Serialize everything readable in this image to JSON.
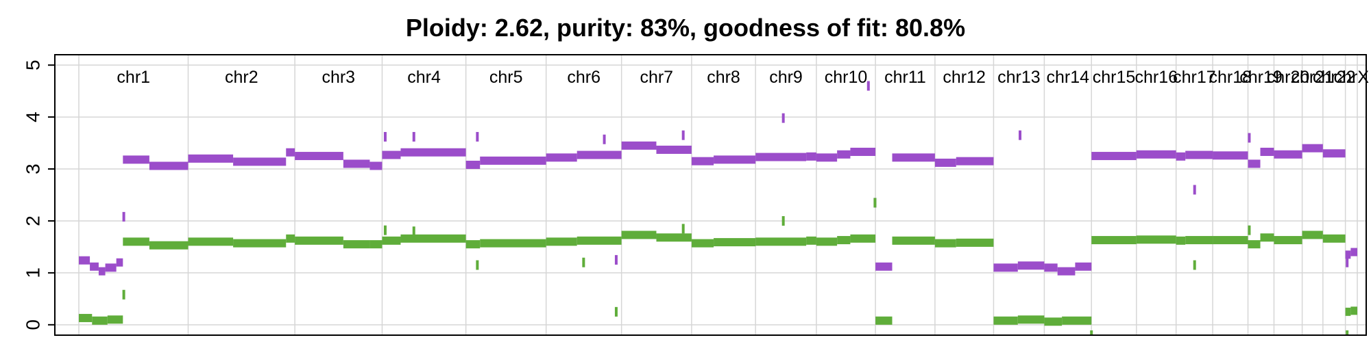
{
  "chart_data": {
    "type": "scatter",
    "title": "Ploidy: 2.62, purity: 83%, goodness of fit: 80.8%",
    "xlabel": "",
    "ylabel": "",
    "ylim": [
      0,
      5
    ],
    "yticks": [
      "0",
      "1",
      "2",
      "3",
      "4",
      "5"
    ],
    "grid": true,
    "colors": {
      "major": "#9B4DCA",
      "minor": "#5FAD3A"
    },
    "chromosomes": [
      {
        "name": "chr1",
        "start": 0,
        "end": 248
      },
      {
        "name": "chr2",
        "start": 248,
        "end": 490
      },
      {
        "name": "chr3",
        "start": 490,
        "end": 688
      },
      {
        "name": "chr4",
        "start": 688,
        "end": 878
      },
      {
        "name": "chr5",
        "start": 878,
        "end": 1060
      },
      {
        "name": "chr6",
        "start": 1060,
        "end": 1231
      },
      {
        "name": "chr7",
        "start": 1231,
        "end": 1390
      },
      {
        "name": "chr8",
        "start": 1390,
        "end": 1535
      },
      {
        "name": "chr9",
        "start": 1535,
        "end": 1673
      },
      {
        "name": "chr10",
        "start": 1673,
        "end": 1807
      },
      {
        "name": "chr11",
        "start": 1807,
        "end": 1942
      },
      {
        "name": "chr12",
        "start": 1942,
        "end": 2075
      },
      {
        "name": "chr13",
        "start": 2075,
        "end": 2190
      },
      {
        "name": "chr14",
        "start": 2190,
        "end": 2297
      },
      {
        "name": "chr15",
        "start": 2297,
        "end": 2399
      },
      {
        "name": "chr16",
        "start": 2399,
        "end": 2489
      },
      {
        "name": "chr17",
        "start": 2489,
        "end": 2572
      },
      {
        "name": "chr18",
        "start": 2572,
        "end": 2652
      },
      {
        "name": "chr19",
        "start": 2652,
        "end": 2711
      },
      {
        "name": "chr20",
        "start": 2711,
        "end": 2775
      },
      {
        "name": "chr21",
        "start": 2775,
        "end": 2822
      },
      {
        "name": "chr22",
        "start": 2822,
        "end": 2873
      },
      {
        "name": "chrX",
        "start": 2873,
        "end": 2900
      }
    ],
    "series": [
      {
        "name": "major",
        "segments": [
          [
            0,
            25,
            1.24
          ],
          [
            25,
            45,
            1.12
          ],
          [
            45,
            60,
            1.03
          ],
          [
            60,
            85,
            1.1
          ],
          [
            85,
            100,
            1.2
          ],
          [
            100,
            160,
            3.18
          ],
          [
            160,
            248,
            3.06
          ],
          [
            248,
            350,
            3.2
          ],
          [
            350,
            470,
            3.14
          ],
          [
            470,
            490,
            3.32
          ],
          [
            490,
            600,
            3.25
          ],
          [
            600,
            660,
            3.1
          ],
          [
            660,
            688,
            3.06
          ],
          [
            688,
            730,
            3.27
          ],
          [
            730,
            878,
            3.32
          ],
          [
            878,
            910,
            3.08
          ],
          [
            910,
            1060,
            3.16
          ],
          [
            1060,
            1130,
            3.22
          ],
          [
            1130,
            1231,
            3.27
          ],
          [
            1231,
            1310,
            3.45
          ],
          [
            1310,
            1390,
            3.37
          ],
          [
            1390,
            1440,
            3.15
          ],
          [
            1440,
            1535,
            3.18
          ],
          [
            1535,
            1650,
            3.23
          ],
          [
            1650,
            1673,
            3.24
          ],
          [
            1673,
            1720,
            3.22
          ],
          [
            1720,
            1750,
            3.28
          ],
          [
            1750,
            1807,
            3.33
          ],
          [
            1807,
            1845,
            1.12
          ],
          [
            1845,
            1942,
            3.22
          ],
          [
            1942,
            1990,
            3.12
          ],
          [
            1990,
            2075,
            3.15
          ],
          [
            2075,
            2130,
            1.1
          ],
          [
            2130,
            2190,
            1.14
          ],
          [
            2190,
            2220,
            1.1
          ],
          [
            2220,
            2260,
            1.03
          ],
          [
            2260,
            2297,
            1.12
          ],
          [
            2297,
            2399,
            3.25
          ],
          [
            2399,
            2489,
            3.28
          ],
          [
            2489,
            2510,
            3.24
          ],
          [
            2510,
            2572,
            3.27
          ],
          [
            2572,
            2652,
            3.26
          ],
          [
            2652,
            2680,
            3.1
          ],
          [
            2680,
            2711,
            3.33
          ],
          [
            2711,
            2775,
            3.28
          ],
          [
            2775,
            2822,
            3.4
          ],
          [
            2822,
            2873,
            3.3
          ],
          [
            2873,
            2885,
            1.35
          ],
          [
            2885,
            2900,
            1.4
          ]
        ],
        "points": [
          [
            102,
            2.08
          ],
          [
            695,
            3.62
          ],
          [
            760,
            3.62
          ],
          [
            904,
            3.62
          ],
          [
            1192,
            3.57
          ],
          [
            1219,
            1.25
          ],
          [
            1371,
            3.65
          ],
          [
            1598,
            3.98
          ],
          [
            1791,
            4.6
          ],
          [
            1806,
            2.35
          ],
          [
            2135,
            3.65
          ],
          [
            2531,
            2.6
          ],
          [
            2655,
            3.6
          ],
          [
            2877,
            1.2
          ]
        ]
      },
      {
        "name": "minor",
        "segments": [
          [
            0,
            30,
            0.13
          ],
          [
            30,
            65,
            0.08
          ],
          [
            65,
            100,
            0.1
          ],
          [
            100,
            160,
            1.6
          ],
          [
            160,
            248,
            1.53
          ],
          [
            248,
            350,
            1.6
          ],
          [
            350,
            470,
            1.57
          ],
          [
            470,
            490,
            1.66
          ],
          [
            490,
            600,
            1.62
          ],
          [
            600,
            660,
            1.55
          ],
          [
            660,
            688,
            1.55
          ],
          [
            688,
            730,
            1.62
          ],
          [
            730,
            878,
            1.66
          ],
          [
            878,
            910,
            1.55
          ],
          [
            910,
            1060,
            1.57
          ],
          [
            1060,
            1130,
            1.6
          ],
          [
            1130,
            1231,
            1.62
          ],
          [
            1231,
            1310,
            1.73
          ],
          [
            1310,
            1390,
            1.68
          ],
          [
            1390,
            1440,
            1.57
          ],
          [
            1440,
            1535,
            1.59
          ],
          [
            1535,
            1650,
            1.6
          ],
          [
            1650,
            1673,
            1.62
          ],
          [
            1673,
            1720,
            1.6
          ],
          [
            1720,
            1750,
            1.63
          ],
          [
            1750,
            1807,
            1.66
          ],
          [
            1807,
            1845,
            0.08
          ],
          [
            1845,
            1942,
            1.62
          ],
          [
            1942,
            1990,
            1.57
          ],
          [
            1990,
            2075,
            1.58
          ],
          [
            2075,
            2130,
            0.08
          ],
          [
            2130,
            2190,
            0.1
          ],
          [
            2190,
            2230,
            0.06
          ],
          [
            2230,
            2297,
            0.08
          ],
          [
            2297,
            2399,
            1.63
          ],
          [
            2399,
            2489,
            1.64
          ],
          [
            2489,
            2510,
            1.62
          ],
          [
            2510,
            2572,
            1.63
          ],
          [
            2572,
            2652,
            1.63
          ],
          [
            2652,
            2680,
            1.55
          ],
          [
            2680,
            2711,
            1.68
          ],
          [
            2711,
            2775,
            1.63
          ],
          [
            2775,
            2822,
            1.73
          ],
          [
            2822,
            2873,
            1.66
          ],
          [
            2873,
            2885,
            0.25
          ],
          [
            2885,
            2900,
            0.27
          ]
        ],
        "points": [
          [
            102,
            0.58
          ],
          [
            695,
            1.82
          ],
          [
            760,
            1.8
          ],
          [
            904,
            1.15
          ],
          [
            1145,
            1.2
          ],
          [
            1219,
            0.25
          ],
          [
            1371,
            1.85
          ],
          [
            1598,
            2.0
          ],
          [
            1806,
            2.35
          ],
          [
            2531,
            1.15
          ],
          [
            2655,
            1.82
          ],
          [
            2297,
            -0.2
          ],
          [
            2877,
            -0.2
          ]
        ]
      }
    ]
  }
}
